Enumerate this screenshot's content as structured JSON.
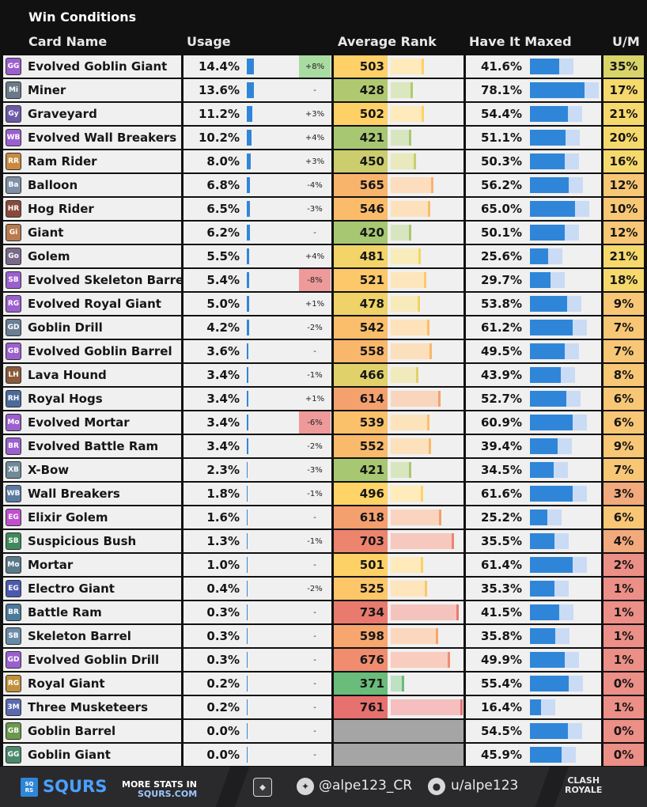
{
  "title": "Win Conditions",
  "headers": {
    "card": "Card Name",
    "usage": "Usage",
    "rank": "Average Rank",
    "maxed": "Have It Maxed",
    "um": "U/M"
  },
  "colors": {
    "usage_bar": "#2f86d8",
    "max_bar": "#2f86d8",
    "max_track": "#c9dbf5",
    "empty_rank": "#a5a5a5",
    "delta_up": "#a9dca1",
    "delta_down": "#ee9a9a"
  },
  "chart_data": {
    "type": "table",
    "title": "Win Conditions",
    "columns": [
      "Card Name",
      "Usage",
      "Usage Change",
      "Average Rank",
      "Have It Maxed",
      "U/M"
    ],
    "rank_range": [
      360,
      770
    ],
    "rows": [
      {
        "card": "Evolved Goblin Giant",
        "usage": "14.4%",
        "usage_value": 14.4,
        "delta": "+8%",
        "rank": "503",
        "rank_value": 503,
        "maxed": "41.6%",
        "maxed_value": 41.6,
        "um": "35%",
        "um_value": 35,
        "icon_color": "#9b5fcf",
        "icon": "GG"
      },
      {
        "card": "Miner",
        "usage": "13.6%",
        "usage_value": 13.6,
        "delta": "-",
        "rank": "428",
        "rank_value": 428,
        "maxed": "78.1%",
        "maxed_value": 78.1,
        "um": "17%",
        "um_value": 17,
        "icon_color": "#6a7a88",
        "icon": "Mi"
      },
      {
        "card": "Graveyard",
        "usage": "11.2%",
        "usage_value": 11.2,
        "delta": "+3%",
        "rank": "502",
        "rank_value": 502,
        "maxed": "54.4%",
        "maxed_value": 54.4,
        "um": "21%",
        "um_value": 21,
        "icon_color": "#6c5aa8",
        "icon": "Gy"
      },
      {
        "card": "Evolved Wall Breakers",
        "usage": "10.2%",
        "usage_value": 10.2,
        "delta": "+4%",
        "rank": "421",
        "rank_value": 421,
        "maxed": "51.1%",
        "maxed_value": 51.1,
        "um": "20%",
        "um_value": 20,
        "icon_color": "#9b5fcf",
        "icon": "WB"
      },
      {
        "card": "Ram Rider",
        "usage": "8.0%",
        "usage_value": 8.0,
        "delta": "+3%",
        "rank": "450",
        "rank_value": 450,
        "maxed": "50.3%",
        "maxed_value": 50.3,
        "um": "16%",
        "um_value": 16,
        "icon_color": "#c98a3f",
        "icon": "RR"
      },
      {
        "card": "Balloon",
        "usage": "6.8%",
        "usage_value": 6.8,
        "delta": "-4%",
        "rank": "565",
        "rank_value": 565,
        "maxed": "56.2%",
        "maxed_value": 56.2,
        "um": "12%",
        "um_value": 12,
        "icon_color": "#7f8fa8",
        "icon": "Ba"
      },
      {
        "card": "Hog Rider",
        "usage": "6.5%",
        "usage_value": 6.5,
        "delta": "-3%",
        "rank": "546",
        "rank_value": 546,
        "maxed": "65.0%",
        "maxed_value": 65.0,
        "um": "10%",
        "um_value": 10,
        "icon_color": "#8a4a3a",
        "icon": "HR"
      },
      {
        "card": "Giant",
        "usage": "6.2%",
        "usage_value": 6.2,
        "delta": "-",
        "rank": "420",
        "rank_value": 420,
        "maxed": "50.1%",
        "maxed_value": 50.1,
        "um": "12%",
        "um_value": 12,
        "icon_color": "#b87a4f",
        "icon": "Gi"
      },
      {
        "card": "Golem",
        "usage": "5.5%",
        "usage_value": 5.5,
        "delta": "+4%",
        "rank": "481",
        "rank_value": 481,
        "maxed": "25.6%",
        "maxed_value": 25.6,
        "um": "21%",
        "um_value": 21,
        "icon_color": "#7a6a8a",
        "icon": "Go"
      },
      {
        "card": "Evolved Skeleton Barrel",
        "usage": "5.4%",
        "usage_value": 5.4,
        "delta": "-8%",
        "rank": "521",
        "rank_value": 521,
        "maxed": "29.7%",
        "maxed_value": 29.7,
        "um": "18%",
        "um_value": 18,
        "icon_color": "#9b5fcf",
        "icon": "SB"
      },
      {
        "card": "Evolved Royal Giant",
        "usage": "5.0%",
        "usage_value": 5.0,
        "delta": "+1%",
        "rank": "478",
        "rank_value": 478,
        "maxed": "53.8%",
        "maxed_value": 53.8,
        "um": "9%",
        "um_value": 9,
        "icon_color": "#9b5fcf",
        "icon": "RG"
      },
      {
        "card": "Goblin Drill",
        "usage": "4.2%",
        "usage_value": 4.2,
        "delta": "-2%",
        "rank": "542",
        "rank_value": 542,
        "maxed": "61.2%",
        "maxed_value": 61.2,
        "um": "7%",
        "um_value": 7,
        "icon_color": "#6a7e94",
        "icon": "GD"
      },
      {
        "card": "Evolved Goblin Barrel",
        "usage": "3.6%",
        "usage_value": 3.6,
        "delta": "-",
        "rank": "558",
        "rank_value": 558,
        "maxed": "49.5%",
        "maxed_value": 49.5,
        "um": "7%",
        "um_value": 7,
        "icon_color": "#9b5fcf",
        "icon": "GB"
      },
      {
        "card": "Lava Hound",
        "usage": "3.4%",
        "usage_value": 3.4,
        "delta": "-1%",
        "rank": "466",
        "rank_value": 466,
        "maxed": "43.9%",
        "maxed_value": 43.9,
        "um": "8%",
        "um_value": 8,
        "icon_color": "#8a5a3a",
        "icon": "LH"
      },
      {
        "card": "Royal Hogs",
        "usage": "3.4%",
        "usage_value": 3.4,
        "delta": "+1%",
        "rank": "614",
        "rank_value": 614,
        "maxed": "52.7%",
        "maxed_value": 52.7,
        "um": "6%",
        "um_value": 6,
        "icon_color": "#4a6a9a",
        "icon": "RH"
      },
      {
        "card": "Evolved Mortar",
        "usage": "3.4%",
        "usage_value": 3.4,
        "delta": "-6%",
        "rank": "539",
        "rank_value": 539,
        "maxed": "60.9%",
        "maxed_value": 60.9,
        "um": "6%",
        "um_value": 6,
        "icon_color": "#9b5fcf",
        "icon": "Mo"
      },
      {
        "card": "Evolved Battle Ram",
        "usage": "3.4%",
        "usage_value": 3.4,
        "delta": "-2%",
        "rank": "552",
        "rank_value": 552,
        "maxed": "39.4%",
        "maxed_value": 39.4,
        "um": "9%",
        "um_value": 9,
        "icon_color": "#9b5fcf",
        "icon": "BR"
      },
      {
        "card": "X-Bow",
        "usage": "2.3%",
        "usage_value": 2.3,
        "delta": "-3%",
        "rank": "421",
        "rank_value": 421,
        "maxed": "34.5%",
        "maxed_value": 34.5,
        "um": "7%",
        "um_value": 7,
        "icon_color": "#6f8a9a",
        "icon": "XB"
      },
      {
        "card": "Wall Breakers",
        "usage": "1.8%",
        "usage_value": 1.8,
        "delta": "-1%",
        "rank": "496",
        "rank_value": 496,
        "maxed": "61.6%",
        "maxed_value": 61.6,
        "um": "3%",
        "um_value": 3,
        "icon_color": "#5a7aa0",
        "icon": "WB"
      },
      {
        "card": "Elixir Golem",
        "usage": "1.6%",
        "usage_value": 1.6,
        "delta": "-",
        "rank": "618",
        "rank_value": 618,
        "maxed": "25.2%",
        "maxed_value": 25.2,
        "um": "6%",
        "um_value": 6,
        "icon_color": "#c04fd0",
        "icon": "EG"
      },
      {
        "card": "Suspicious Bush",
        "usage": "1.3%",
        "usage_value": 1.3,
        "delta": "-1%",
        "rank": "703",
        "rank_value": 703,
        "maxed": "35.5%",
        "maxed_value": 35.5,
        "um": "4%",
        "um_value": 4,
        "icon_color": "#3f8a5a",
        "icon": "SB"
      },
      {
        "card": "Mortar",
        "usage": "1.0%",
        "usage_value": 1.0,
        "delta": "-",
        "rank": "501",
        "rank_value": 501,
        "maxed": "61.4%",
        "maxed_value": 61.4,
        "um": "2%",
        "um_value": 2,
        "icon_color": "#5a7a8a",
        "icon": "Mo"
      },
      {
        "card": "Electro Giant",
        "usage": "0.4%",
        "usage_value": 0.4,
        "delta": "-2%",
        "rank": "525",
        "rank_value": 525,
        "maxed": "35.3%",
        "maxed_value": 35.3,
        "um": "1%",
        "um_value": 1,
        "icon_color": "#4a5ab0",
        "icon": "EG"
      },
      {
        "card": "Battle Ram",
        "usage": "0.3%",
        "usage_value": 0.3,
        "delta": "-",
        "rank": "734",
        "rank_value": 734,
        "maxed": "41.5%",
        "maxed_value": 41.5,
        "um": "1%",
        "um_value": 1,
        "icon_color": "#4a7a9a",
        "icon": "BR"
      },
      {
        "card": "Skeleton Barrel",
        "usage": "0.3%",
        "usage_value": 0.3,
        "delta": "-",
        "rank": "598",
        "rank_value": 598,
        "maxed": "35.8%",
        "maxed_value": 35.8,
        "um": "1%",
        "um_value": 1,
        "icon_color": "#6a8aa8",
        "icon": "SB"
      },
      {
        "card": "Evolved Goblin Drill",
        "usage": "0.3%",
        "usage_value": 0.3,
        "delta": "-",
        "rank": "676",
        "rank_value": 676,
        "maxed": "49.9%",
        "maxed_value": 49.9,
        "um": "1%",
        "um_value": 1,
        "icon_color": "#9b5fcf",
        "icon": "GD"
      },
      {
        "card": "Royal Giant",
        "usage": "0.2%",
        "usage_value": 0.2,
        "delta": "-",
        "rank": "371",
        "rank_value": 371,
        "maxed": "55.4%",
        "maxed_value": 55.4,
        "um": "0%",
        "um_value": 0,
        "icon_color": "#c0903a",
        "icon": "RG"
      },
      {
        "card": "Three Musketeers",
        "usage": "0.2%",
        "usage_value": 0.2,
        "delta": "-",
        "rank": "761",
        "rank_value": 761,
        "maxed": "16.4%",
        "maxed_value": 16.4,
        "um": "1%",
        "um_value": 1,
        "icon_color": "#5a6ab0",
        "icon": "3M"
      },
      {
        "card": "Goblin Barrel",
        "usage": "0.0%",
        "usage_value": 0.0,
        "delta": "-",
        "rank": "",
        "rank_value": null,
        "maxed": "54.5%",
        "maxed_value": 54.5,
        "um": "0%",
        "um_value": 0,
        "icon_color": "#6a9a4a",
        "icon": "GB"
      },
      {
        "card": "Goblin Giant",
        "usage": "0.0%",
        "usage_value": 0.0,
        "delta": "-",
        "rank": "",
        "rank_value": null,
        "maxed": "45.9%",
        "maxed_value": 45.9,
        "um": "0%",
        "um_value": 0,
        "icon_color": "#4a8a6a",
        "icon": "GG"
      }
    ]
  },
  "footer": {
    "logo_mark": "SQ RS",
    "brand": "SQURS",
    "more_line1": "MORE STATS IN",
    "more_line2": "SQURS.COM",
    "twitter_icon": "twitter-icon",
    "twitter": "@alpe123_CR",
    "reddit_icon": "reddit-icon",
    "reddit": "u/alpe123",
    "cr_logo_line1": "CLASH",
    "cr_logo_line2": "ROYALE"
  }
}
